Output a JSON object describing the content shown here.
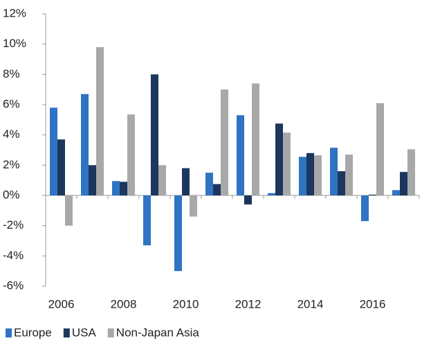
{
  "chart_data": {
    "type": "bar",
    "categories": [
      "2006",
      null,
      "2008",
      null,
      "2010",
      null,
      "2012",
      null,
      "2014",
      null,
      "2016",
      null
    ],
    "series": [
      {
        "name": "Europe",
        "color": "#2f73c4",
        "values": [
          5.8,
          6.7,
          0.95,
          -3.3,
          -5.0,
          1.5,
          5.3,
          0.15,
          2.55,
          3.15,
          -1.7,
          0.35
        ]
      },
      {
        "name": "USA",
        "color": "#1c365e",
        "values": [
          3.7,
          2.0,
          0.9,
          8.0,
          1.8,
          0.75,
          -0.6,
          4.75,
          2.8,
          1.6,
          0.05,
          1.55
        ]
      },
      {
        "name": "Non-Japan Asia",
        "color": "#a8a8a8",
        "values": [
          -2.0,
          9.8,
          5.35,
          2.0,
          -1.4,
          7.0,
          7.4,
          4.15,
          2.65,
          2.7,
          6.1,
          3.05
        ]
      }
    ],
    "ylim": [
      -6,
      12
    ],
    "yticks": [
      {
        "value": -6,
        "label": "-6%"
      },
      {
        "value": -4,
        "label": "-4%"
      },
      {
        "value": -2,
        "label": "-2%"
      },
      {
        "value": 0,
        "label": "0%"
      },
      {
        "value": 2,
        "label": "2%"
      },
      {
        "value": 4,
        "label": "4%"
      },
      {
        "value": 6,
        "label": "6%"
      },
      {
        "value": 8,
        "label": "8%"
      },
      {
        "value": 10,
        "label": "10%"
      },
      {
        "value": 12,
        "label": "12%"
      }
    ],
    "grid": false,
    "legend": "bottom"
  }
}
